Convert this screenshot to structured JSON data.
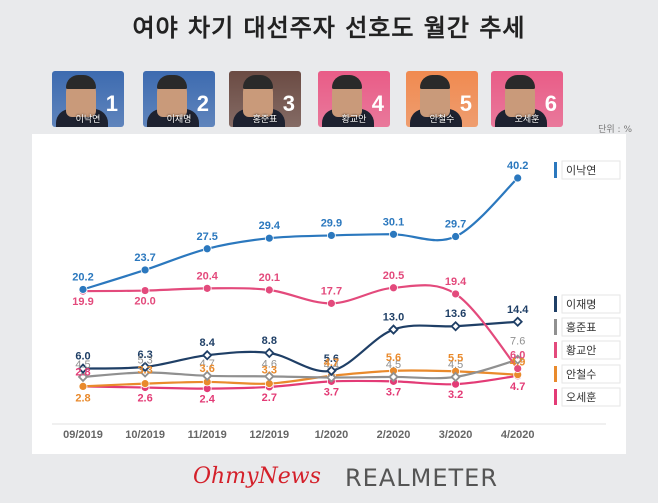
{
  "title": "여야 차기 대선주자 선호도 월간 추세",
  "unit_label": "단위 : %",
  "candidates": [
    {
      "num": "1",
      "name": "이낙연",
      "bg": "#3d6bb0"
    },
    {
      "num": "2",
      "name": "이재명",
      "bg": "#3d6bb0"
    },
    {
      "num": "3",
      "name": "홍준표",
      "bg": "#6b4b43"
    },
    {
      "num": "4",
      "name": "황교안",
      "bg": "#e95c87"
    },
    {
      "num": "5",
      "name": "안철수",
      "bg": "#f08a50"
    },
    {
      "num": "6",
      "name": "오세훈",
      "bg": "#e95c87"
    }
  ],
  "logos": {
    "left": "OhmyNews",
    "right": "REALMETER"
  },
  "chart_data": {
    "type": "line",
    "title": "여야 차기 대선주자 선호도 월간 추세",
    "xlabel": "",
    "ylabel": "",
    "unit": "%",
    "categories": [
      "09/2019",
      "10/2019",
      "11/2019",
      "12/2019",
      "1/2020",
      "2/2020",
      "3/2020",
      "4/2020"
    ],
    "ylim": [
      0,
      42
    ],
    "grid": false,
    "legend_position": "right",
    "series": [
      {
        "name": "이낙연",
        "color": "#2b78be",
        "marker": "circle",
        "values": [
          20.2,
          23.7,
          27.5,
          29.4,
          29.9,
          30.1,
          29.7,
          40.2
        ],
        "labels": [
          "20.2",
          "23.7",
          "27.5",
          "29.4",
          "29.9",
          "30.1",
          "29.7",
          "40.2"
        ]
      },
      {
        "name": "이재명",
        "color": "#1f3f66",
        "marker": "diamond",
        "values": [
          6.0,
          6.3,
          8.4,
          8.8,
          5.6,
          13.0,
          13.6,
          14.4
        ],
        "labels": [
          "6.0",
          "6.3",
          "8.4",
          "8.8",
          "5.6",
          "13.0",
          "13.6",
          "14.4"
        ]
      },
      {
        "name": "홍준표",
        "color": "#909090",
        "marker": "diamond",
        "values": [
          4.5,
          5.3,
          4.7,
          4.6,
          4.4,
          4.5,
          4.5,
          7.6
        ],
        "labels": [
          "4.5",
          "5.3",
          "4.7",
          "4.6",
          "4.4",
          "4.5",
          "4.5",
          "7.6"
        ]
      },
      {
        "name": "황교안",
        "color": "#e34a7c",
        "marker": "circle",
        "values": [
          19.9,
          20.0,
          20.4,
          20.1,
          17.7,
          20.5,
          19.4,
          6.0
        ],
        "labels": [
          "19.9",
          "20.0",
          "20.4",
          "20.1",
          "17.7",
          "20.5",
          "19.4",
          "6.0"
        ]
      },
      {
        "name": "안철수",
        "color": "#e98a2c",
        "marker": "circle",
        "values": [
          2.8,
          3.3,
          3.6,
          3.3,
          4.7,
          5.6,
          5.5,
          4.9
        ],
        "labels": [
          "2.8",
          "3.3",
          "3.6",
          "3.3",
          "4.7",
          "5.6",
          "5.5",
          "4.9"
        ]
      },
      {
        "name": "오세훈",
        "color": "#e33b76",
        "marker": "circle",
        "values": [
          2.8,
          2.6,
          2.4,
          2.7,
          3.7,
          3.7,
          3.2,
          4.7
        ],
        "labels": [
          "2.8",
          "2.6",
          "2.4",
          "2.7",
          "3.7",
          "3.7",
          "3.2",
          "4.7"
        ]
      }
    ]
  }
}
